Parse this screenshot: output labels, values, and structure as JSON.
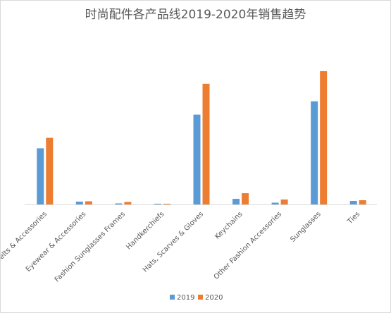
{
  "chart_data": {
    "type": "bar",
    "title": "时尚配件各产品线2019-2020年销售趋势",
    "categories": [
      "Belts & Accessories",
      "Eyewear & Accessories",
      "Fashion Sunglasses Frames",
      "Handkerchiefs",
      "Hats, Scarves & Gloves",
      "Keychains",
      "Other Fashion Accessories",
      "Sunglasses",
      "Ties"
    ],
    "series": [
      {
        "name": "2019",
        "values": [
          80,
          4,
          1.5,
          1,
          128,
          8,
          2.5,
          147,
          5
        ],
        "color": "#5b9bd5"
      },
      {
        "name": "2020",
        "values": [
          95,
          4.5,
          3.5,
          1,
          172,
          16,
          7,
          190,
          6
        ],
        "color": "#ed7d31"
      }
    ],
    "ylim": [
      0,
      210
    ],
    "grid": false,
    "legend": "bottom"
  }
}
